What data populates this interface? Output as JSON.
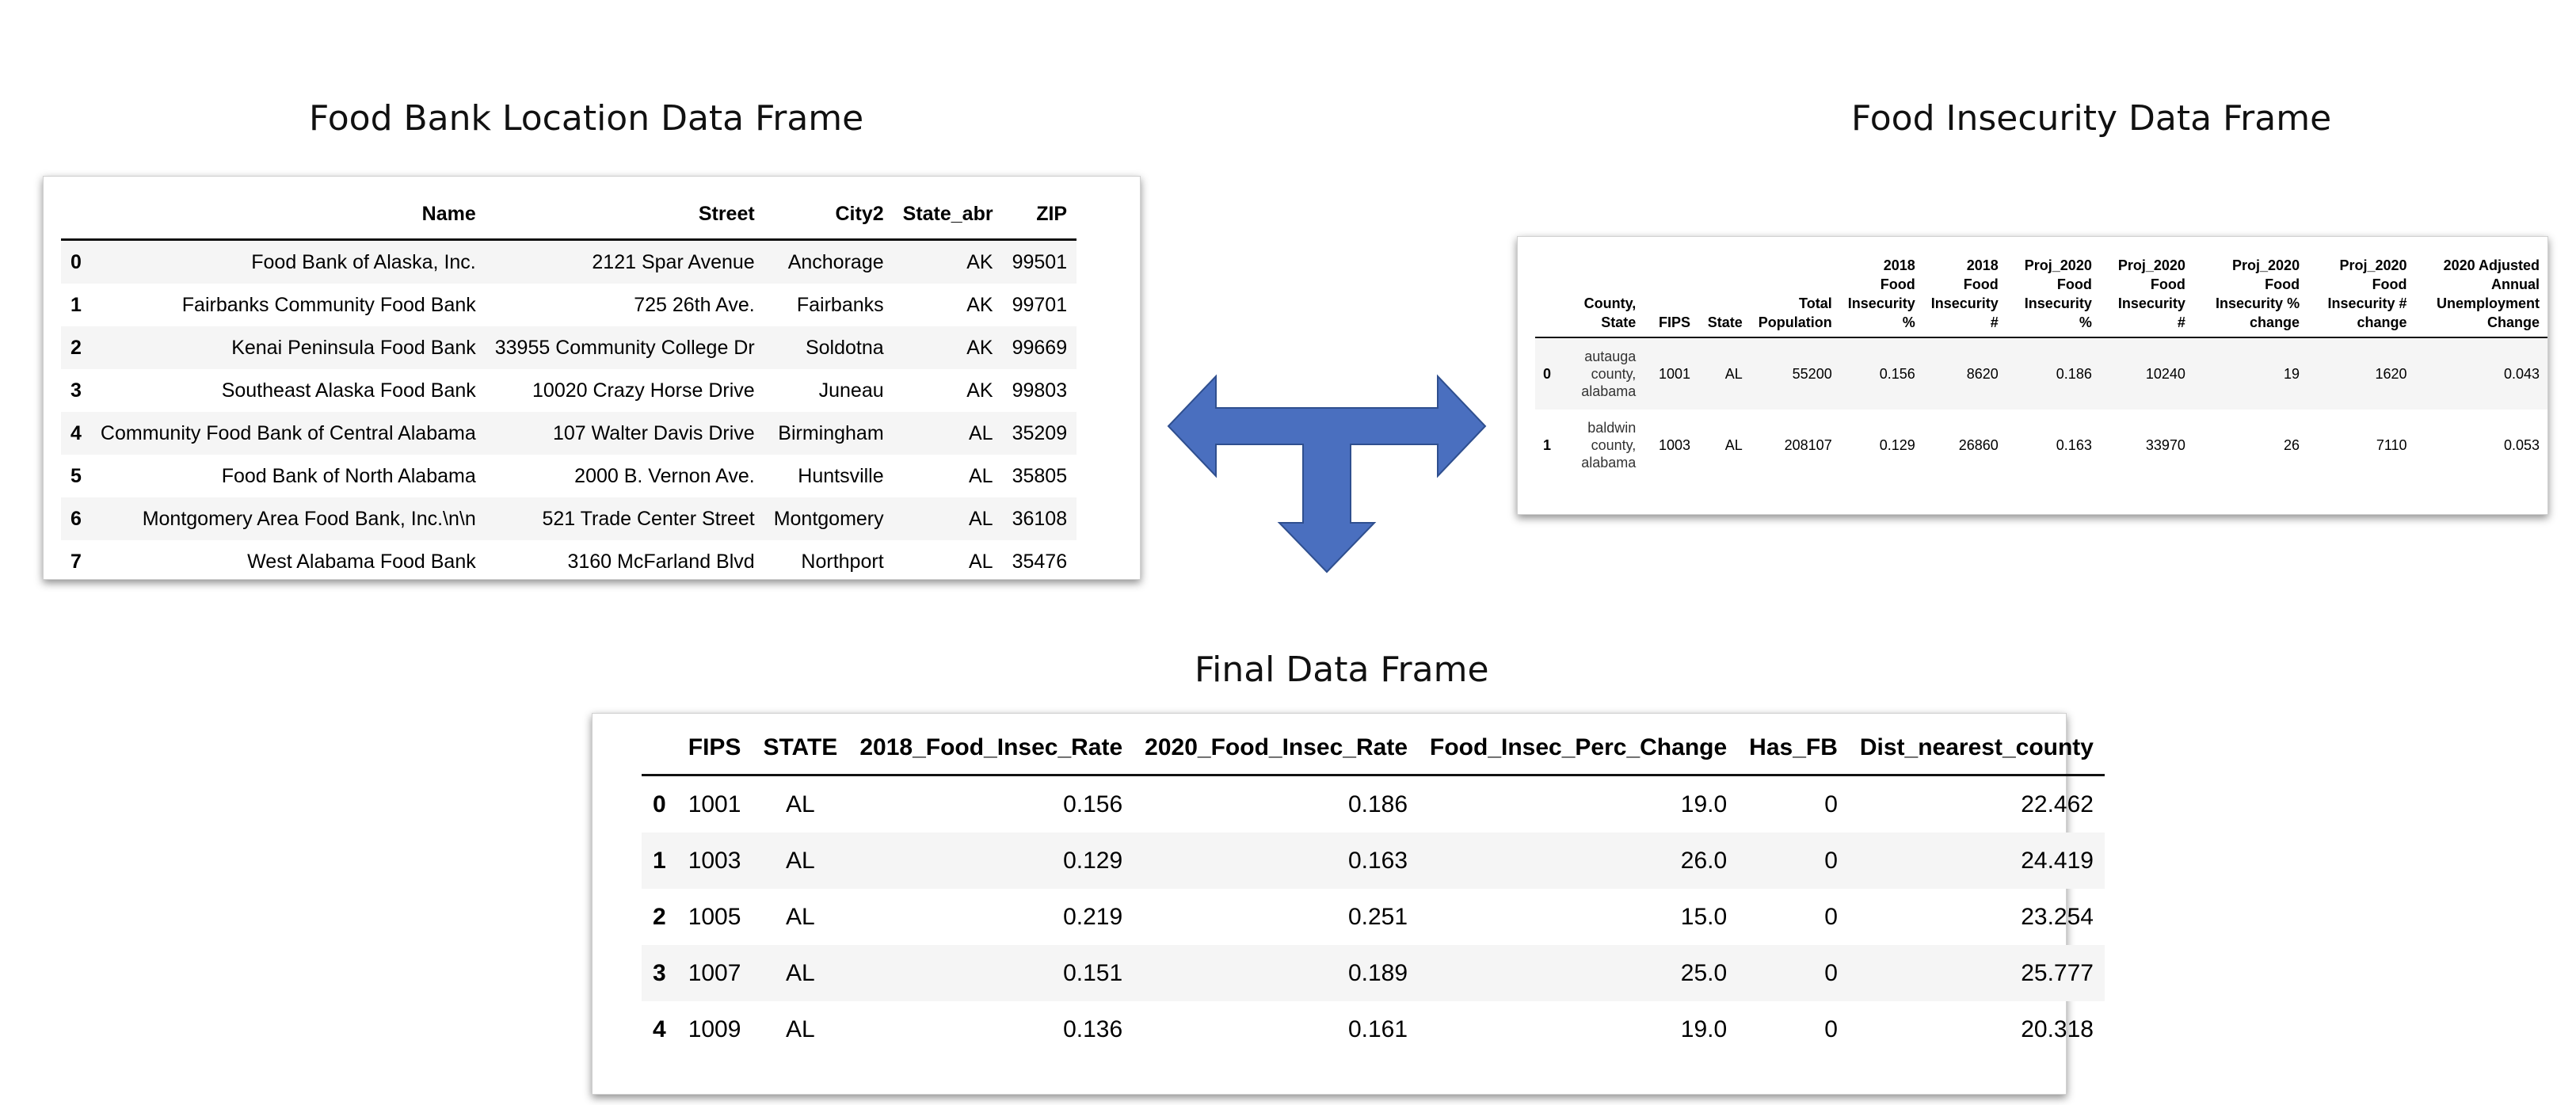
{
  "titles": {
    "food_bank": "Food Bank Location Data Frame",
    "food_insecurity": "Food Insecurity Data Frame",
    "final": "Final Data Frame"
  },
  "food_bank_table": {
    "columns": [
      "Name",
      "Street",
      "City2",
      "State_abr",
      "ZIP"
    ],
    "rows": [
      {
        "idx": "0",
        "cells": [
          "Food Bank of Alaska, Inc.",
          "2121 Spar Avenue",
          "Anchorage",
          "AK",
          "99501"
        ]
      },
      {
        "idx": "1",
        "cells": [
          "Fairbanks Community Food Bank",
          "725 26th Ave.",
          "Fairbanks",
          "AK",
          "99701"
        ]
      },
      {
        "idx": "2",
        "cells": [
          "Kenai Peninsula Food Bank",
          "33955 Community College Dr",
          "Soldotna",
          "AK",
          "99669"
        ]
      },
      {
        "idx": "3",
        "cells": [
          "Southeast Alaska Food Bank",
          "10020 Crazy Horse Drive",
          "Juneau",
          "AK",
          "99803"
        ]
      },
      {
        "idx": "4",
        "cells": [
          "Community Food Bank of Central Alabama",
          "107 Walter Davis Drive",
          "Birmingham",
          "AL",
          "35209"
        ]
      },
      {
        "idx": "5",
        "cells": [
          "Food Bank of North Alabama",
          "2000 B. Vernon Ave.",
          "Huntsville",
          "AL",
          "35805"
        ]
      },
      {
        "idx": "6",
        "cells": [
          "Montgomery Area Food Bank, Inc.\\n\\n",
          "521 Trade Center Street",
          "Montgomery",
          "AL",
          "36108"
        ]
      },
      {
        "idx": "7",
        "cells": [
          "West Alabama Food Bank",
          "3160 McFarland Blvd",
          "Northport",
          "AL",
          "35476"
        ]
      }
    ]
  },
  "food_insecurity_table": {
    "columns": [
      "County, State",
      "FIPS",
      "State",
      "Total Population",
      "2018 Food Insecurity %",
      "2018 Food Insecurity #",
      "Proj_2020 Food Insecurity %",
      "Proj_2020 Food Insecurity #",
      "Proj_2020 Food Insecurity % change",
      "Proj_2020 Food Insecurity # change",
      "2020 Adjusted Annual Unemployment Change"
    ],
    "rows": [
      {
        "idx": "0",
        "cells": [
          "autauga county, alabama",
          "1001",
          "AL",
          "55200",
          "0.156",
          "8620",
          "0.186",
          "10240",
          "19",
          "1620",
          "0.043"
        ]
      },
      {
        "idx": "1",
        "cells": [
          "baldwin county, alabama",
          "1003",
          "AL",
          "208107",
          "0.129",
          "26860",
          "0.163",
          "33970",
          "26",
          "7110",
          "0.053"
        ]
      }
    ]
  },
  "final_table": {
    "columns": [
      "FIPS",
      "STATE",
      "2018_Food_Insec_Rate",
      "2020_Food_Insec_Rate",
      "Food_Insec_Perc_Change",
      "Has_FB",
      "Dist_nearest_county"
    ],
    "rows": [
      {
        "idx": "0",
        "cells": [
          "1001",
          "AL",
          "0.156",
          "0.186",
          "19.0",
          "0",
          "22.462"
        ]
      },
      {
        "idx": "1",
        "cells": [
          "1003",
          "AL",
          "0.129",
          "0.163",
          "26.0",
          "0",
          "24.419"
        ]
      },
      {
        "idx": "2",
        "cells": [
          "1005",
          "AL",
          "0.219",
          "0.251",
          "15.0",
          "0",
          "23.254"
        ]
      },
      {
        "idx": "3",
        "cells": [
          "1007",
          "AL",
          "0.151",
          "0.189",
          "25.0",
          "0",
          "25.777"
        ]
      },
      {
        "idx": "4",
        "cells": [
          "1009",
          "AL",
          "0.136",
          "0.161",
          "19.0",
          "0",
          "20.318"
        ]
      }
    ]
  },
  "colors": {
    "arrow_fill": "#4a6fbf",
    "arrow_stroke": "#2f4f8f",
    "row_alt": "#f5f5f5"
  },
  "icons": {
    "merge_arrow": "t-shaped-three-way-arrow"
  }
}
